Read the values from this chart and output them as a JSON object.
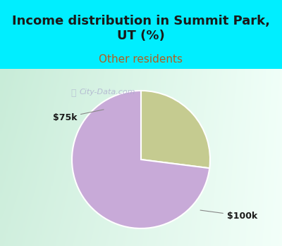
{
  "title": "Income distribution in Summit Park,\nUT (%)",
  "subtitle": "Other residents",
  "slices": [
    {
      "label": "$75k",
      "value": 27,
      "color": "#c5cb90"
    },
    {
      "label": "$100k",
      "value": 73,
      "color": "#c8aad8"
    }
  ],
  "title_fontsize": 13,
  "subtitle_fontsize": 11,
  "title_color": "#1a1a1a",
  "subtitle_color": "#b06020",
  "bg_color": "#00eeff",
  "chart_bg_left": "#c8ecd8",
  "chart_bg_right": "#f0fdf8",
  "annotation_color": "#1a1a1a",
  "annotation_fontsize": 9,
  "line_color": "#888888",
  "watermark_text": "City-Data.com",
  "watermark_color": "#aaaacc",
  "startangle": 90
}
